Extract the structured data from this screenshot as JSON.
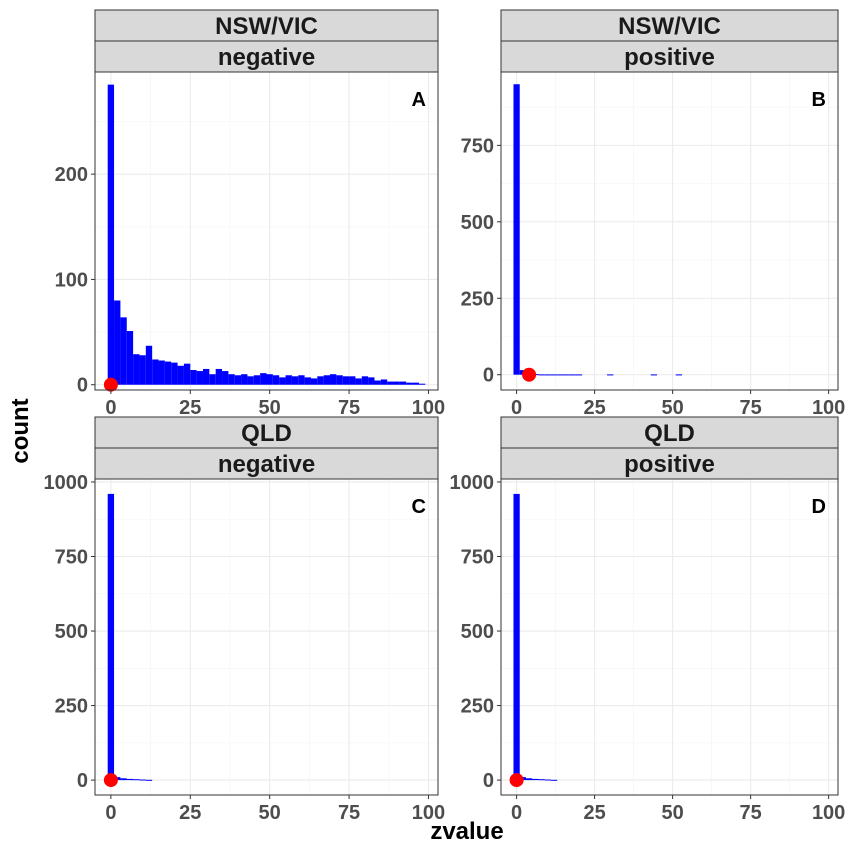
{
  "colors": {
    "bar": "#0000ff",
    "point": "#ff0000",
    "strip": "#d9d9d9"
  },
  "chart_data": {
    "type": "histogram",
    "xlabel": "zvalue",
    "ylabel": "count",
    "grid": true,
    "panels": [
      {
        "strip_top": "NSW/VIC",
        "strip_bottom": "negative",
        "tag": "A",
        "xlim": [
          -5,
          103
        ],
        "ylim": [
          -5,
          297
        ],
        "xticks": [
          0,
          25,
          50,
          75,
          100
        ],
        "yticks": [
          0,
          100,
          200
        ],
        "bin_width": 2,
        "bins": [
          {
            "x": 0,
            "count": 285
          },
          {
            "x": 2,
            "count": 80
          },
          {
            "x": 4,
            "count": 64
          },
          {
            "x": 6,
            "count": 51
          },
          {
            "x": 8,
            "count": 29
          },
          {
            "x": 10,
            "count": 28
          },
          {
            "x": 12,
            "count": 37
          },
          {
            "x": 14,
            "count": 24
          },
          {
            "x": 16,
            "count": 23
          },
          {
            "x": 18,
            "count": 22
          },
          {
            "x": 20,
            "count": 21
          },
          {
            "x": 22,
            "count": 18
          },
          {
            "x": 24,
            "count": 20
          },
          {
            "x": 26,
            "count": 14
          },
          {
            "x": 28,
            "count": 13
          },
          {
            "x": 30,
            "count": 15
          },
          {
            "x": 32,
            "count": 10
          },
          {
            "x": 34,
            "count": 15
          },
          {
            "x": 36,
            "count": 13
          },
          {
            "x": 38,
            "count": 10
          },
          {
            "x": 40,
            "count": 9
          },
          {
            "x": 42,
            "count": 10
          },
          {
            "x": 44,
            "count": 8
          },
          {
            "x": 46,
            "count": 9
          },
          {
            "x": 48,
            "count": 11
          },
          {
            "x": 50,
            "count": 10
          },
          {
            "x": 52,
            "count": 9
          },
          {
            "x": 54,
            "count": 7
          },
          {
            "x": 56,
            "count": 9
          },
          {
            "x": 58,
            "count": 8
          },
          {
            "x": 60,
            "count": 9
          },
          {
            "x": 62,
            "count": 7
          },
          {
            "x": 64,
            "count": 6
          },
          {
            "x": 66,
            "count": 8
          },
          {
            "x": 68,
            "count": 9
          },
          {
            "x": 70,
            "count": 10
          },
          {
            "x": 72,
            "count": 9
          },
          {
            "x": 74,
            "count": 8
          },
          {
            "x": 76,
            "count": 8
          },
          {
            "x": 78,
            "count": 6
          },
          {
            "x": 80,
            "count": 8
          },
          {
            "x": 82,
            "count": 7
          },
          {
            "x": 84,
            "count": 4
          },
          {
            "x": 86,
            "count": 5
          },
          {
            "x": 88,
            "count": 3
          },
          {
            "x": 90,
            "count": 3
          },
          {
            "x": 92,
            "count": 3
          },
          {
            "x": 94,
            "count": 2
          },
          {
            "x": 96,
            "count": 2
          },
          {
            "x": 98,
            "count": 1
          }
        ],
        "point": {
          "x": 0,
          "y": 0
        }
      },
      {
        "strip_top": "NSW/VIC",
        "strip_bottom": "positive",
        "tag": "B",
        "xlim": [
          -5,
          103
        ],
        "ylim": [
          -50,
          990
        ],
        "xticks": [
          0,
          25,
          50,
          75,
          100
        ],
        "yticks": [
          0,
          250,
          500,
          750
        ],
        "bin_width": 2,
        "bins": [
          {
            "x": 0,
            "count": 950
          },
          {
            "x": 2,
            "count": 15
          },
          {
            "x": 4,
            "count": 3
          },
          {
            "x": 6,
            "count": 2
          },
          {
            "x": 8,
            "count": 1
          },
          {
            "x": 10,
            "count": 1
          },
          {
            "x": 12,
            "count": 1
          },
          {
            "x": 14,
            "count": 1
          },
          {
            "x": 16,
            "count": 1
          },
          {
            "x": 18,
            "count": 1
          },
          {
            "x": 20,
            "count": 1
          },
          {
            "x": 30,
            "count": 1
          },
          {
            "x": 44,
            "count": 1
          },
          {
            "x": 52,
            "count": 1
          }
        ],
        "point": {
          "x": 4,
          "y": 0
        }
      },
      {
        "strip_top": "QLD",
        "strip_bottom": "negative",
        "tag": "C",
        "xlim": [
          -5,
          103
        ],
        "ylim": [
          -50,
          1010
        ],
        "xticks": [
          0,
          25,
          50,
          75,
          100
        ],
        "yticks": [
          0,
          250,
          500,
          750,
          1000
        ],
        "bin_width": 2,
        "bins": [
          {
            "x": 0,
            "count": 960
          },
          {
            "x": 2,
            "count": 10
          },
          {
            "x": 4,
            "count": 6
          },
          {
            "x": 6,
            "count": 4
          },
          {
            "x": 8,
            "count": 3
          },
          {
            "x": 10,
            "count": 2
          },
          {
            "x": 12,
            "count": 1
          }
        ],
        "point": {
          "x": 0,
          "y": 0
        }
      },
      {
        "strip_top": "QLD",
        "strip_bottom": "positive",
        "tag": "D",
        "xlim": [
          -5,
          103
        ],
        "ylim": [
          -50,
          1010
        ],
        "xticks": [
          0,
          25,
          50,
          75,
          100
        ],
        "yticks": [
          0,
          250,
          500,
          750,
          1000
        ],
        "bin_width": 2,
        "bins": [
          {
            "x": 0,
            "count": 960
          },
          {
            "x": 2,
            "count": 10
          },
          {
            "x": 4,
            "count": 6
          },
          {
            "x": 6,
            "count": 4
          },
          {
            "x": 8,
            "count": 3
          },
          {
            "x": 10,
            "count": 2
          },
          {
            "x": 12,
            "count": 1
          }
        ],
        "point": {
          "x": 0,
          "y": 0
        }
      }
    ]
  }
}
